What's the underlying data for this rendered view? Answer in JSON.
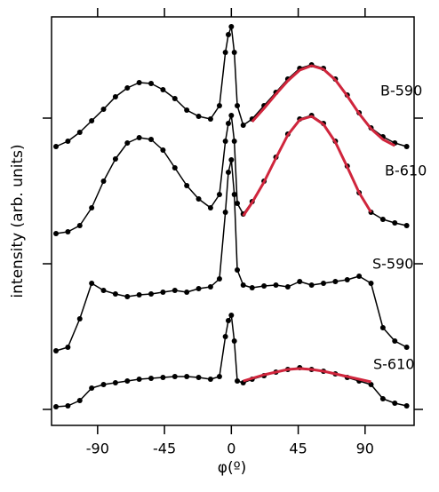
{
  "chart_data": {
    "type": "line",
    "xlabel": "φ(º)",
    "ylabel": "intensity (arb. units)",
    "x": [
      -118,
      -110,
      -102,
      -94,
      -86,
      -78,
      -70,
      -62,
      -54,
      -46,
      -38,
      -30,
      -22,
      -14,
      -8,
      -4,
      -2,
      0,
      2,
      4,
      8,
      14,
      22,
      30,
      38,
      46,
      54,
      62,
      70,
      78,
      86,
      94,
      102,
      110,
      118
    ],
    "series": [
      {
        "name": "B-590",
        "color": "#000000",
        "values": [
          314,
          320,
          330,
          343,
          356,
          370,
          380,
          386,
          385,
          378,
          368,
          355,
          348,
          345,
          360,
          420,
          440,
          449,
          420,
          360,
          338,
          345,
          360,
          375,
          390,
          402,
          406,
          402,
          390,
          372,
          352,
          335,
          325,
          318,
          314
        ]
      },
      {
        "name": "B-610",
        "color": "#000000",
        "values": [
          216,
          218,
          225,
          245,
          275,
          300,
          318,
          324,
          322,
          310,
          290,
          270,
          255,
          245,
          260,
          320,
          340,
          349,
          320,
          250,
          238,
          252,
          275,
          302,
          328,
          345,
          349,
          340,
          320,
          292,
          262,
          240,
          232,
          228,
          225
        ]
      },
      {
        "name": "S-590",
        "color": "#000000",
        "values": [
          84,
          88,
          120,
          160,
          152,
          148,
          145,
          147,
          148,
          150,
          152,
          150,
          154,
          156,
          165,
          240,
          285,
          299,
          260,
          175,
          158,
          155,
          157,
          158,
          156,
          162,
          158,
          160,
          162,
          164,
          168,
          160,
          110,
          95,
          88
        ]
      },
      {
        "name": "S-610",
        "color": "#000000",
        "values": [
          21,
          22,
          28,
          42,
          46,
          48,
          50,
          52,
          53,
          54,
          55,
          55,
          54,
          52,
          55,
          100,
          118,
          124,
          95,
          50,
          48,
          52,
          56,
          60,
          63,
          65,
          63,
          61,
          58,
          54,
          50,
          46,
          30,
          25,
          22
        ]
      }
    ],
    "fits": [
      {
        "color": "#d0253c",
        "values": [
          null,
          null,
          null,
          null,
          null,
          null,
          null,
          null,
          null,
          null,
          null,
          null,
          null,
          null,
          null,
          null,
          null,
          null,
          null,
          null,
          null,
          342,
          357,
          373,
          388,
          400,
          405,
          401,
          389,
          371,
          351,
          334,
          322,
          315,
          null
        ]
      },
      {
        "color": "#d0253c",
        "values": [
          null,
          null,
          null,
          null,
          null,
          null,
          null,
          null,
          null,
          null,
          null,
          null,
          null,
          null,
          null,
          null,
          null,
          null,
          null,
          null,
          236,
          251,
          274,
          301,
          327,
          344,
          348,
          339,
          319,
          291,
          262,
          240,
          null,
          null,
          null
        ]
      },
      {
        "color": "#d0253c",
        "values": [
          null,
          null,
          null,
          null,
          null,
          null,
          null,
          null,
          null,
          null,
          null,
          null,
          null,
          null,
          null,
          null,
          null,
          null,
          null,
          null,
          50,
          53,
          57,
          60,
          63,
          64,
          63,
          61,
          58,
          55,
          52,
          49,
          null,
          null,
          null
        ]
      }
    ],
    "xlim": [
      -121,
      123
    ],
    "xticks": [
      -90,
      -45,
      0,
      45,
      90
    ],
    "ylim": [
      0,
      460
    ],
    "yticks": [
      18,
      182,
      346
    ]
  }
}
